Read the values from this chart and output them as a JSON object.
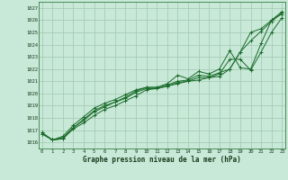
{
  "title": "Graphe pression niveau de la mer (hPa)",
  "bg_color": "#c8e8d8",
  "line_color": "#1a6b2a",
  "grid_color": "#a0c8b0",
  "ylim": [
    1015.5,
    1027.5
  ],
  "xlim": [
    -0.3,
    23.3
  ],
  "yticks": [
    1016,
    1017,
    1018,
    1019,
    1020,
    1021,
    1022,
    1023,
    1024,
    1025,
    1026,
    1027
  ],
  "xticks": [
    0,
    1,
    2,
    3,
    4,
    5,
    6,
    7,
    8,
    9,
    10,
    11,
    12,
    13,
    14,
    15,
    16,
    17,
    18,
    19,
    20,
    21,
    22,
    23
  ],
  "series": [
    [
      1016.7,
      1016.2,
      1016.3,
      1017.1,
      1017.6,
      1018.2,
      1018.7,
      1019.0,
      1019.4,
      1019.8,
      1020.3,
      1020.4,
      1020.6,
      1020.8,
      1021.0,
      1021.1,
      1021.3,
      1021.4,
      1022.0,
      1023.4,
      1025.0,
      1025.3,
      1026.0,
      1026.5
    ],
    [
      1016.7,
      1016.2,
      1016.3,
      1017.2,
      1017.9,
      1018.6,
      1019.0,
      1019.3,
      1019.7,
      1020.2,
      1020.5,
      1020.5,
      1020.7,
      1021.0,
      1021.1,
      1021.5,
      1021.4,
      1021.7,
      1022.0,
      1023.4,
      1024.3,
      1025.1,
      1025.9,
      1026.6
    ],
    [
      1016.8,
      1016.2,
      1016.5,
      1017.4,
      1018.1,
      1018.8,
      1019.2,
      1019.5,
      1019.9,
      1020.3,
      1020.5,
      1020.5,
      1020.8,
      1021.5,
      1021.2,
      1021.8,
      1021.6,
      1022.0,
      1023.5,
      1022.1,
      1022.0,
      1024.1,
      1026.0,
      1026.7
    ],
    [
      1016.8,
      1016.2,
      1016.4,
      1017.2,
      1017.8,
      1018.5,
      1018.9,
      1019.3,
      1019.6,
      1020.1,
      1020.4,
      1020.4,
      1020.6,
      1020.9,
      1021.0,
      1021.3,
      1021.3,
      1021.6,
      1022.8,
      1022.8,
      1021.9,
      1023.4,
      1025.0,
      1026.2
    ]
  ]
}
